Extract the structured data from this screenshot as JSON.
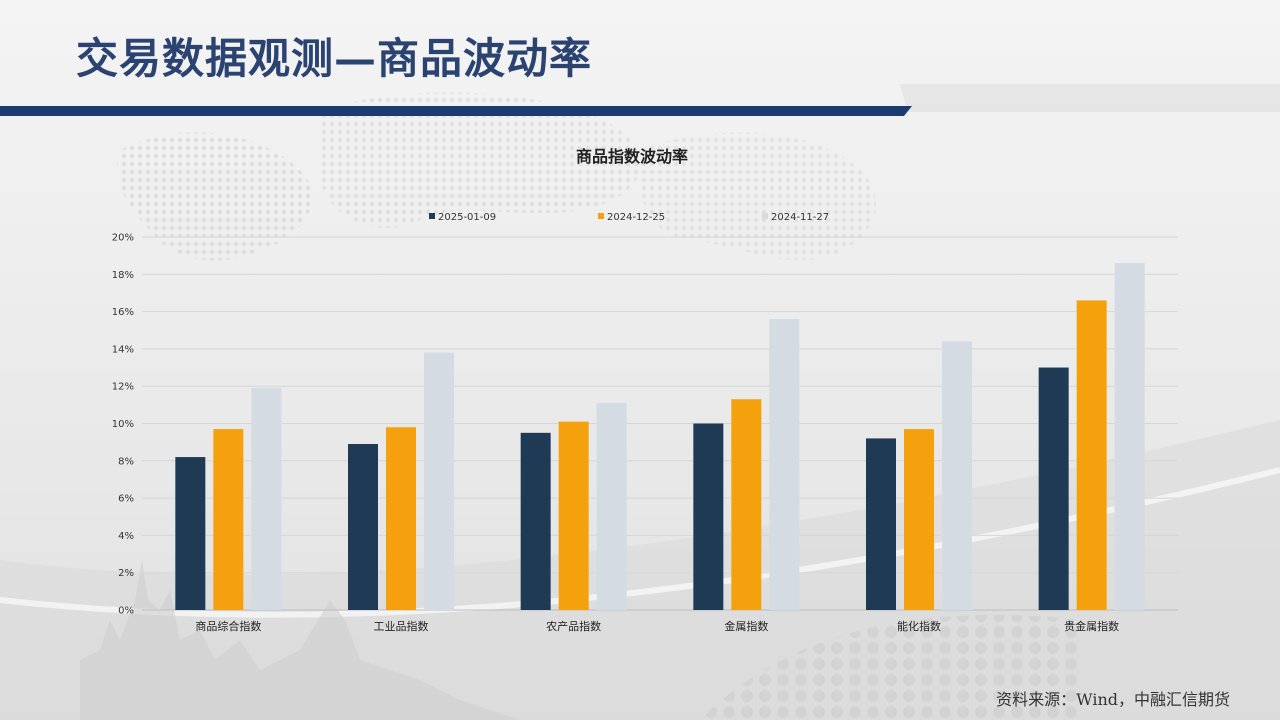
{
  "slide": {
    "title": "交易数据观测—商品波动率",
    "source": "资料来源：Wind，中融汇信期货"
  },
  "colors": {
    "title": "#2a4370",
    "title_bar": "#1c3b6e",
    "series": [
      "#1f3a55",
      "#f5a10d",
      "#d4dbe3"
    ]
  },
  "chart_data": {
    "type": "bar",
    "title": "商品指数波动率",
    "categories": [
      "商品综合指数",
      "工业品指数",
      "农产品指数",
      "金属指数",
      "能化指数",
      "贵金属指数"
    ],
    "series": [
      {
        "name": "2025-01-09",
        "values": [
          8.2,
          8.9,
          9.5,
          10.0,
          9.2,
          13.0
        ]
      },
      {
        "name": "2024-12-25",
        "values": [
          9.7,
          9.8,
          10.1,
          11.3,
          9.7,
          16.6
        ]
      },
      {
        "name": "2024-11-27",
        "values": [
          11.9,
          13.8,
          11.1,
          15.6,
          14.4,
          18.6
        ]
      }
    ],
    "y_ticks": [
      "0%",
      "2%",
      "4%",
      "6%",
      "8%",
      "10%",
      "12%",
      "14%",
      "16%",
      "18%",
      "20%"
    ],
    "ylim": [
      0,
      20
    ],
    "grid": true,
    "legend_position": "top"
  }
}
